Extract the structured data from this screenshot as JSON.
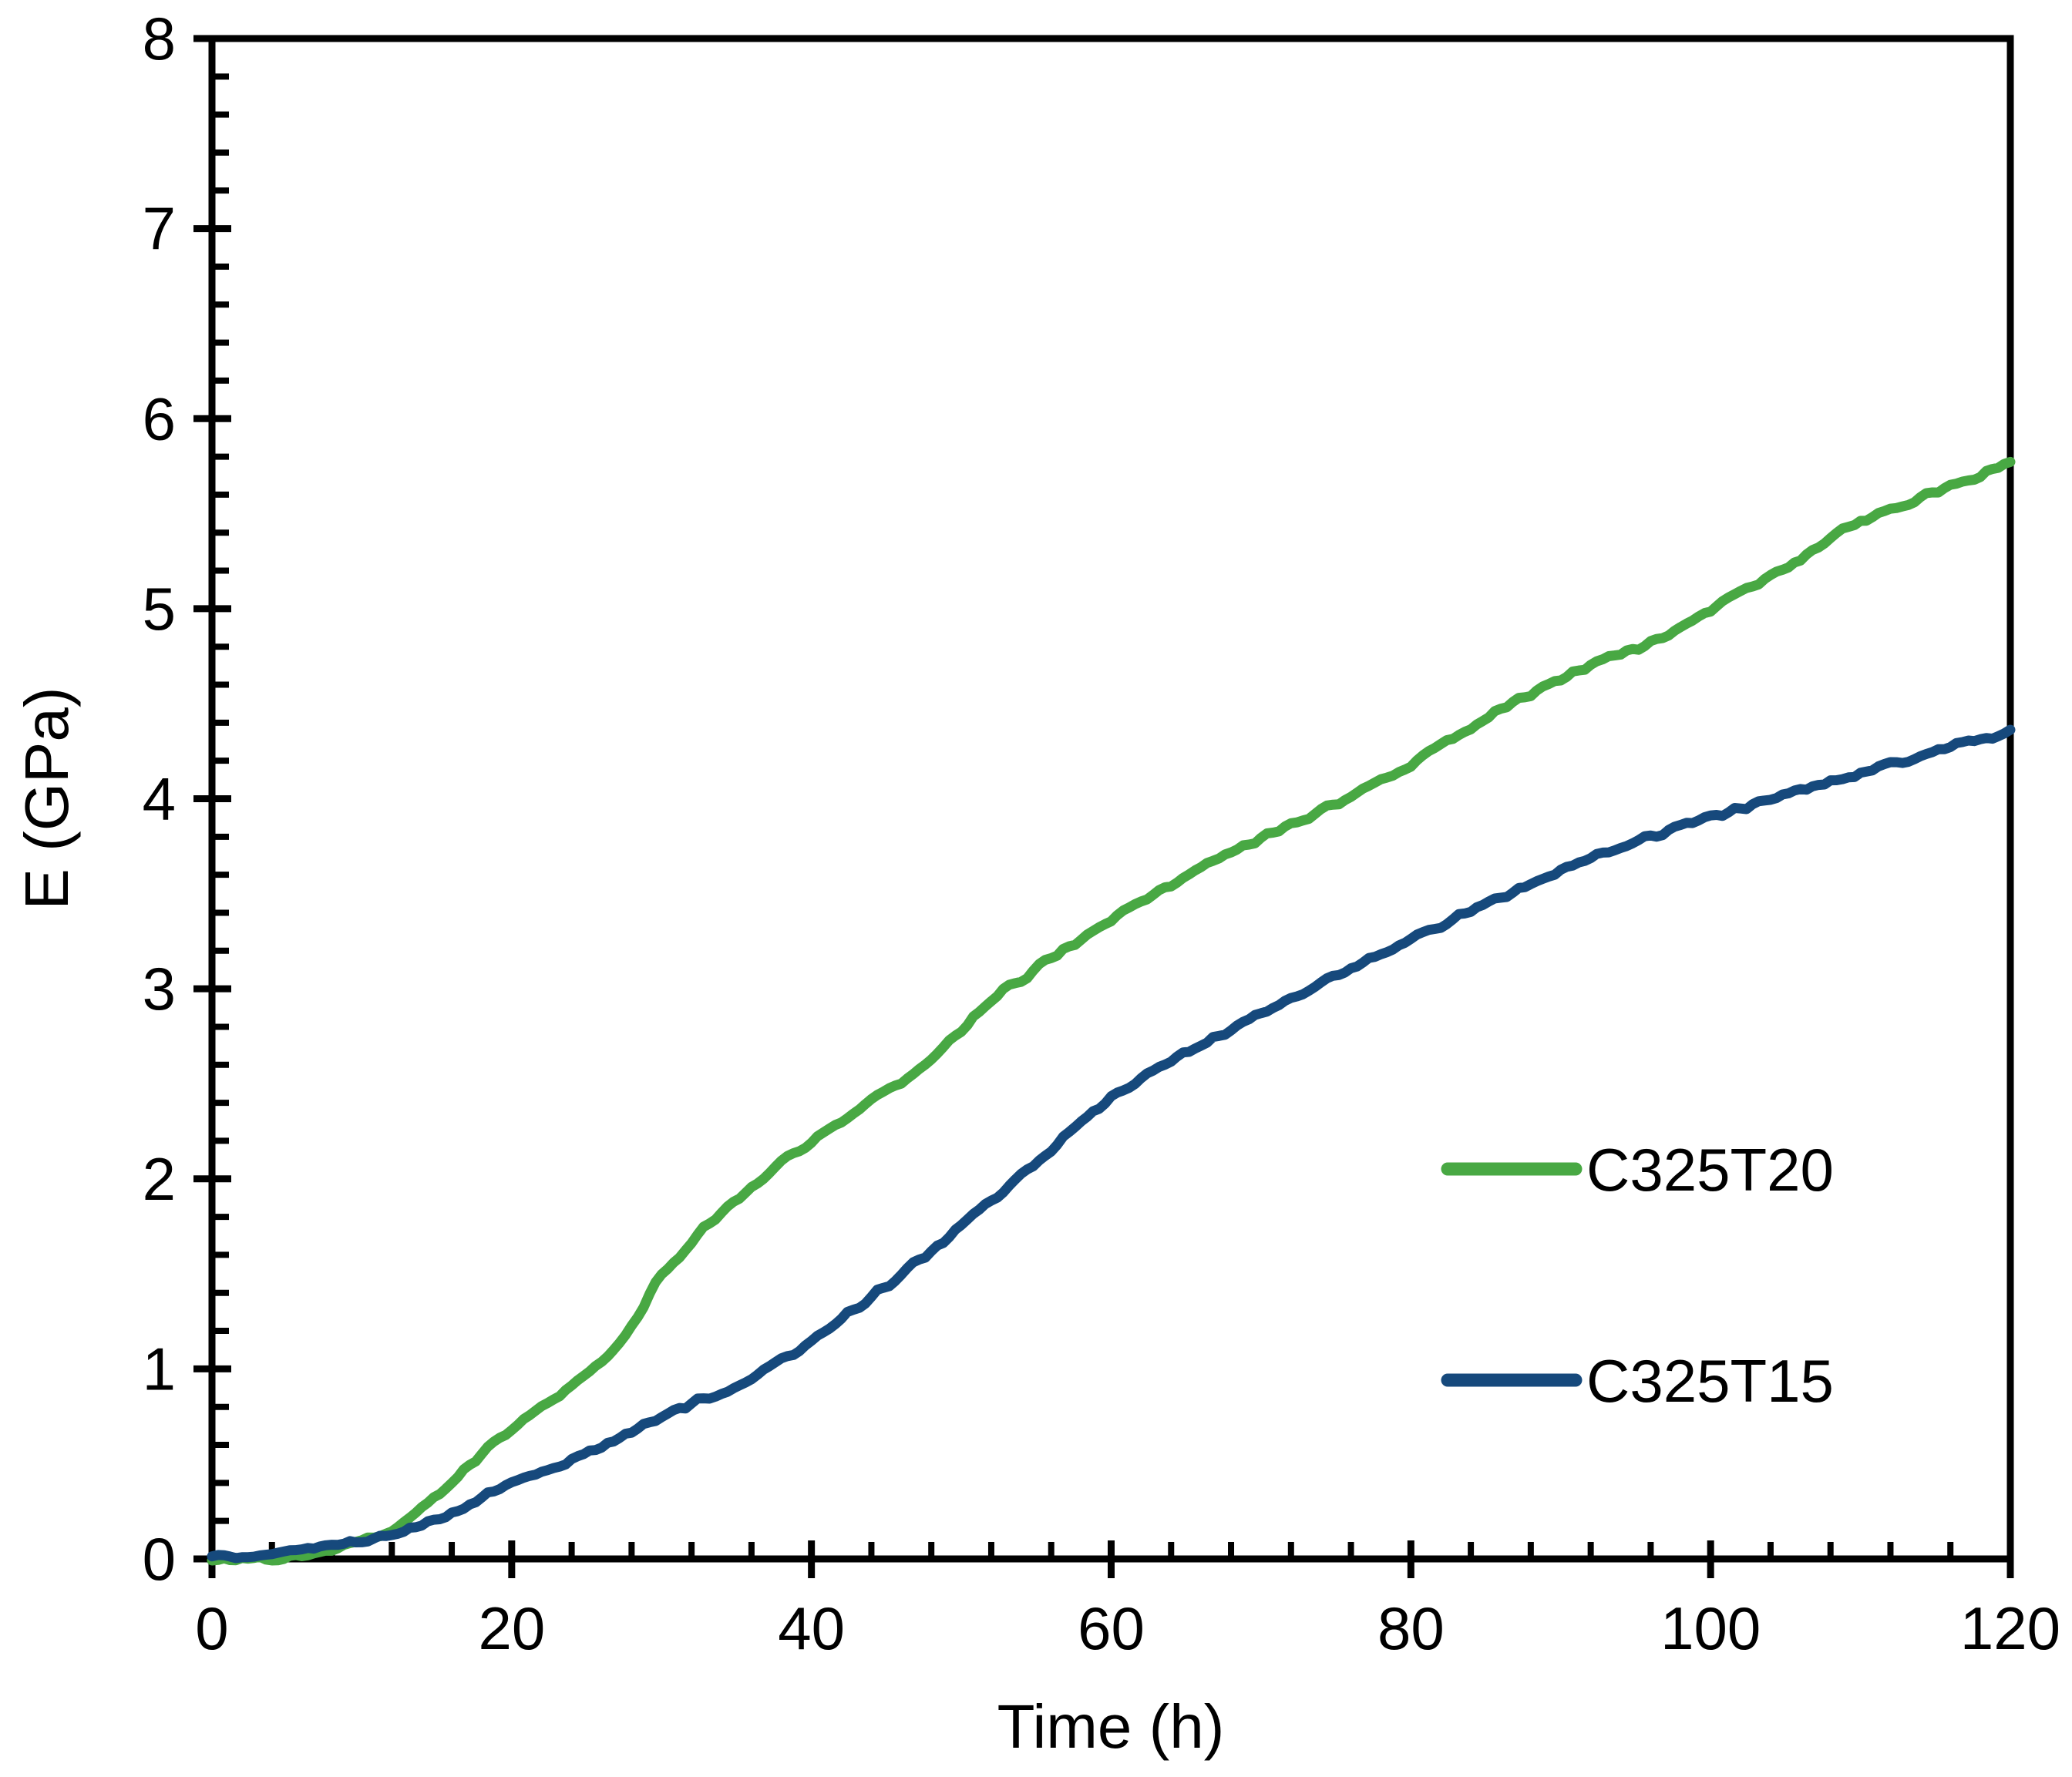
{
  "chart_data": {
    "type": "line",
    "title": "",
    "xlabel": "Time (h)",
    "ylabel": "E (GPa)",
    "xlim": [
      0,
      120
    ],
    "ylim": [
      0,
      8
    ],
    "x_major_ticks": [
      0,
      20,
      40,
      60,
      80,
      100,
      120
    ],
    "x_minor_step": 4,
    "y_major_ticks": [
      0,
      1,
      2,
      3,
      4,
      5,
      6,
      7,
      8
    ],
    "y_minor_step": 0.2,
    "grid": false,
    "legend_position": "inside-right",
    "frame": true,
    "series": [
      {
        "name": "C325T20",
        "color": "#48A843",
        "x": [
          0,
          2,
          4,
          6,
          8,
          10,
          12,
          14,
          16,
          18,
          20,
          22,
          24,
          26,
          28,
          30,
          32,
          34,
          36,
          38,
          40,
          42,
          44,
          46,
          48,
          50,
          52,
          54,
          56,
          58,
          60,
          62,
          64,
          66,
          68,
          70,
          72,
          74,
          76,
          78,
          80,
          82,
          84,
          86,
          88,
          90,
          92,
          94,
          96,
          98,
          100,
          102,
          104,
          106,
          108,
          110,
          112,
          114,
          116,
          118,
          120
        ],
        "values": [
          0.0,
          0.0,
          0.0,
          0.01,
          0.04,
          0.09,
          0.15,
          0.26,
          0.4,
          0.55,
          0.68,
          0.8,
          0.91,
          1.03,
          1.22,
          1.5,
          1.67,
          1.83,
          1.96,
          2.09,
          2.2,
          2.31,
          2.41,
          2.51,
          2.63,
          2.78,
          2.94,
          3.05,
          3.16,
          3.27,
          3.36,
          3.46,
          3.54,
          3.63,
          3.71,
          3.79,
          3.87,
          3.94,
          4.01,
          4.09,
          4.18,
          4.29,
          4.38,
          4.47,
          4.55,
          4.63,
          4.7,
          4.76,
          4.82,
          4.91,
          5.0,
          5.09,
          5.17,
          5.26,
          5.38,
          5.46,
          5.52,
          5.58,
          5.65,
          5.7,
          5.78
        ]
      },
      {
        "name": "C325T15",
        "color": "#16497C",
        "x": [
          0,
          2,
          4,
          6,
          8,
          10,
          12,
          14,
          16,
          18,
          20,
          22,
          24,
          26,
          28,
          30,
          32,
          34,
          36,
          38,
          40,
          42,
          44,
          46,
          48,
          50,
          52,
          54,
          56,
          58,
          60,
          62,
          64,
          66,
          68,
          70,
          72,
          74,
          76,
          78,
          80,
          82,
          84,
          86,
          88,
          90,
          92,
          94,
          96,
          98,
          100,
          102,
          104,
          106,
          108,
          110,
          112,
          114,
          116,
          118,
          120
        ],
        "values": [
          0.01,
          0.02,
          0.03,
          0.05,
          0.07,
          0.1,
          0.13,
          0.17,
          0.24,
          0.32,
          0.4,
          0.46,
          0.52,
          0.58,
          0.67,
          0.75,
          0.82,
          0.88,
          0.95,
          1.04,
          1.14,
          1.26,
          1.38,
          1.5,
          1.62,
          1.75,
          1.89,
          2.03,
          2.16,
          2.3,
          2.42,
          2.52,
          2.62,
          2.7,
          2.79,
          2.87,
          2.95,
          3.03,
          3.1,
          3.18,
          3.26,
          3.33,
          3.41,
          3.48,
          3.55,
          3.62,
          3.68,
          3.74,
          3.8,
          3.86,
          3.9,
          3.95,
          4.0,
          4.05,
          4.09,
          4.13,
          4.18,
          4.22,
          4.27,
          4.31,
          4.36
        ]
      }
    ]
  }
}
